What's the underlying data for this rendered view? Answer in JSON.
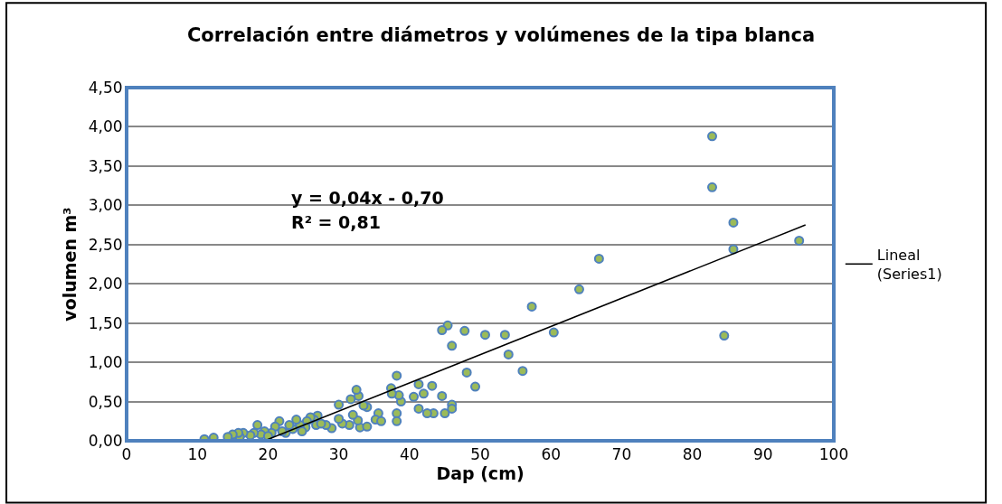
{
  "chart_data": {
    "type": "scatter",
    "title": "Correlación entre diámetros y volúmenes de la tipa blanca",
    "xlabel": "Dap (cm)",
    "ylabel": "volumen m³",
    "xlim": [
      0,
      100
    ],
    "xticks": [
      0,
      10,
      20,
      30,
      40,
      50,
      60,
      70,
      80,
      90,
      100
    ],
    "ylim": [
      0,
      4.5
    ],
    "yticks": [
      {
        "value": 0,
        "label": "0,00"
      },
      {
        "value": 0.5,
        "label": "0,50"
      },
      {
        "value": 1,
        "label": "1,00"
      },
      {
        "value": 1.5,
        "label": "1,50"
      },
      {
        "value": 2,
        "label": "2,00"
      },
      {
        "value": 2.5,
        "label": "2,50"
      },
      {
        "value": 3,
        "label": "3,00"
      },
      {
        "value": 3.5,
        "label": "3,50"
      },
      {
        "value": 4,
        "label": "4,00"
      },
      {
        "value": 4.5,
        "label": "4,50"
      }
    ],
    "grid": "y",
    "legend": "right",
    "annotations": [
      "y = 0,04x - 0,70",
      "R² = 0,81"
    ],
    "series": [
      {
        "color": "#9bbb59",
        "marker": "circle",
        "x": [
          82.8,
          82.8,
          85.8,
          85.8,
          95.1,
          84.5,
          66.8,
          64,
          60.4,
          57.3,
          56,
          53.5,
          54,
          50.7,
          49.3,
          48.1,
          47.8,
          46,
          45.4,
          44.6,
          46,
          46,
          45,
          44.6,
          43.4,
          43.2,
          42.5,
          42,
          41.3,
          41.3,
          40.6,
          38.8,
          38.5,
          38.2,
          38.2,
          38.2,
          37.4,
          37.5,
          35.6,
          35.2,
          34,
          33.5,
          33,
          32.8,
          32.5,
          31.7,
          32.7,
          32,
          31.5,
          30.5,
          30,
          30,
          29,
          27,
          26.5,
          26.8,
          26,
          25.5,
          25.3,
          24.5,
          24,
          23.5,
          23,
          22.5,
          22,
          21.6,
          21,
          20.5,
          19.5,
          19,
          18.5,
          18,
          17.5,
          16.5,
          16,
          15.8,
          15,
          14.3,
          12.3,
          11,
          20,
          28.2,
          34,
          36,
          24.8,
          27.5
        ],
        "values": [
          3.88,
          3.23,
          2.78,
          2.44,
          2.55,
          1.34,
          2.32,
          1.93,
          1.38,
          1.71,
          0.89,
          1.35,
          1.1,
          1.35,
          0.69,
          0.87,
          1.4,
          1.21,
          1.47,
          1.41,
          0.46,
          0.41,
          0.35,
          0.57,
          0.35,
          0.7,
          0.35,
          0.6,
          0.72,
          0.41,
          0.56,
          0.5,
          0.58,
          0.83,
          0.35,
          0.25,
          0.67,
          0.6,
          0.35,
          0.27,
          0.43,
          0.45,
          0.17,
          0.57,
          0.65,
          0.53,
          0.26,
          0.33,
          0.2,
          0.22,
          0.46,
          0.28,
          0.16,
          0.32,
          0.27,
          0.2,
          0.3,
          0.25,
          0.17,
          0.2,
          0.27,
          0.15,
          0.2,
          0.1,
          0.12,
          0.25,
          0.18,
          0.1,
          0.12,
          0.08,
          0.2,
          0.1,
          0.07,
          0.1,
          0.05,
          0.1,
          0.08,
          0.05,
          0.04,
          0.02,
          0.06,
          0.2,
          0.18,
          0.25,
          0.12,
          0.22
        ]
      },
      {
        "type": "line",
        "name": "Lineal (Series1)",
        "color": "#000000",
        "marker": "none",
        "line_style": "solid",
        "x": [
          19.5,
          96
        ],
        "values": [
          0,
          2.75
        ]
      }
    ]
  }
}
